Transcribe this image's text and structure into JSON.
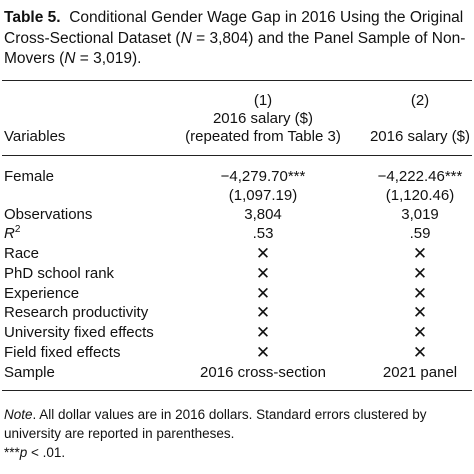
{
  "caption": {
    "label": "Table 5.",
    "text_a": "Conditional Gender Wage Gap in 2016 Using the Original Cross-Sectional Dataset (",
    "n_sym_1": "N",
    "text_b": " = 3,804) and the Panel Sample of Non-Movers (",
    "n_sym_2": "N",
    "text_c": " = 3,019)."
  },
  "header": {
    "col1_num": "(1)",
    "col1_title": "2016 salary ($)",
    "col1_sub": "(repeated from Table 3)",
    "col2_num": "(2)",
    "col2_title": "2016 salary ($)",
    "variables": "Variables"
  },
  "rows": {
    "female": {
      "label": "Female",
      "c1": "−4,279.70***",
      "c2": "−4,222.46***",
      "c1_se": "(1,097.19)",
      "c2_se": "(1,120.46)"
    },
    "observations": {
      "label": "Observations",
      "c1": "3,804",
      "c2": "3,019"
    },
    "r2": {
      "label": "R",
      "sup": "2",
      "c1": ".53",
      "c2": ".59"
    },
    "race": {
      "label": "Race",
      "c1": "✕",
      "c2": "✕"
    },
    "phd": {
      "label": "PhD school rank",
      "c1": "✕",
      "c2": "✕"
    },
    "experience": {
      "label": "Experience",
      "c1": "✕",
      "c2": "✕"
    },
    "research": {
      "label": "Research productivity",
      "c1": "✕",
      "c2": "✕"
    },
    "univ": {
      "label": "University fixed effects",
      "c1": "✕",
      "c2": "✕"
    },
    "field": {
      "label": "Field fixed effects",
      "c1": "✕",
      "c2": "✕"
    },
    "sample": {
      "label": "Sample",
      "c1": "2016 cross-section",
      "c2": "2021 panel"
    }
  },
  "note": {
    "lead": "Note",
    "text": ". All dollar values are in 2016 dollars. Standard errors clustered by university are reported in parentheses.",
    "sig_stars": "***",
    "sig_p": "p",
    "sig_rest": " < .01."
  }
}
